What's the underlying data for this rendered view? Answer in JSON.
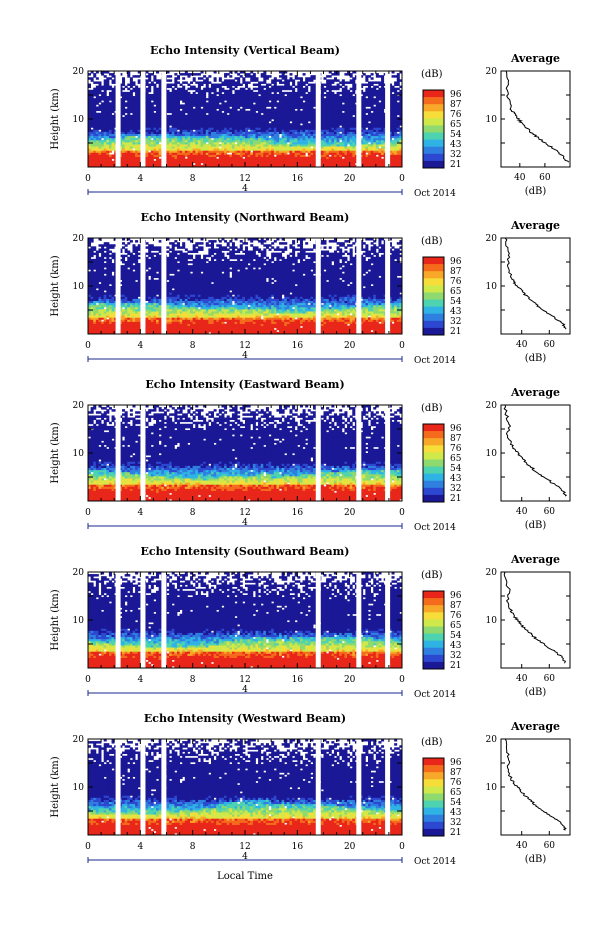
{
  "figure": {
    "xlabel": "Local Time",
    "date_label": "4",
    "month_label": "Oct 2014",
    "colorbar_unit": "(dB)",
    "colorbar_ticks": [
      "96",
      "87",
      "76",
      "65",
      "54",
      "43",
      "32",
      "21"
    ],
    "colorbar_colors": [
      "#e8261a",
      "#f56b1c",
      "#f8a828",
      "#f6dd3a",
      "#cfe84a",
      "#8fda6e",
      "#4dd3b0",
      "#2fb3e4",
      "#2f7fe0",
      "#2c48d0",
      "#1b1896"
    ],
    "average_title": "Average",
    "average_xlabel": "(dB)",
    "average_xticks": [
      "40",
      "60"
    ],
    "height_label": "Height (km)",
    "height_ticks": [
      "10",
      "20"
    ]
  },
  "chart_data": [
    {
      "type": "heatmap",
      "title": "Echo Intensity (Vertical Beam)",
      "xlabel": "Local Time",
      "ylabel": "Height (km)",
      "colorbar_label": "(dB)",
      "x_ticks": [
        "0",
        "4",
        "8",
        "12",
        "16",
        "20",
        "0"
      ],
      "xlim": [
        0,
        24
      ],
      "ylim": [
        0,
        20
      ],
      "data_gaps_hours": [
        2.3,
        4.2,
        5.8,
        17.6,
        20.7,
        22.9
      ],
      "average_profile": {
        "title": "Average",
        "xlabel": "(dB)",
        "xlim": [
          25,
          80
        ],
        "x": [
          78,
          75,
          71,
          66,
          60,
          55,
          50,
          46,
          42,
          39,
          36,
          33,
          31,
          30,
          30,
          29
        ],
        "y": [
          1,
          2,
          3,
          4,
          5,
          6,
          7,
          8,
          9,
          10,
          11,
          12,
          14,
          16,
          18,
          20
        ]
      }
    },
    {
      "type": "heatmap",
      "title": "Echo Intensity (Northward Beam)",
      "xlabel": "Local Time",
      "ylabel": "Height (km)",
      "colorbar_label": "(dB)",
      "x_ticks": [
        "0",
        "4",
        "8",
        "12",
        "16",
        "20",
        "0"
      ],
      "xlim": [
        0,
        24
      ],
      "ylim": [
        0,
        20
      ],
      "data_gaps_hours": [
        2.3,
        4.2,
        5.8,
        17.6,
        20.7,
        22.9
      ],
      "average_profile": {
        "title": "Average",
        "xlabel": "(dB)",
        "xlim": [
          25,
          75
        ],
        "x": [
          72,
          70,
          66,
          61,
          56,
          51,
          47,
          43,
          40,
          37,
          34,
          32,
          30,
          31,
          29,
          28
        ],
        "y": [
          1,
          2,
          3,
          4,
          5,
          6,
          7,
          8,
          9,
          10,
          11,
          12,
          14,
          16,
          18,
          20
        ]
      }
    },
    {
      "type": "heatmap",
      "title": "Echo Intensity (Eastward Beam)",
      "xlabel": "Local Time",
      "ylabel": "Height (km)",
      "colorbar_label": "(dB)",
      "x_ticks": [
        "0",
        "4",
        "8",
        "12",
        "16",
        "20",
        "0"
      ],
      "xlim": [
        0,
        24
      ],
      "ylim": [
        0,
        20
      ],
      "data_gaps_hours": [
        2.3,
        4.2,
        17.6,
        20.7,
        22.9
      ],
      "average_profile": {
        "title": "Average",
        "xlabel": "(dB)",
        "xlim": [
          25,
          75
        ],
        "x": [
          72,
          70,
          66,
          61,
          56,
          51,
          47,
          43,
          40,
          37,
          34,
          32,
          30,
          31,
          29,
          28
        ],
        "y": [
          1,
          2,
          3,
          4,
          5,
          6,
          7,
          8,
          9,
          10,
          11,
          12,
          14,
          16,
          18,
          20
        ]
      }
    },
    {
      "type": "heatmap",
      "title": "Echo Intensity (Southward Beam)",
      "xlabel": "Local Time",
      "ylabel": "Height (km)",
      "colorbar_label": "(dB)",
      "x_ticks": [
        "0",
        "4",
        "8",
        "12",
        "16",
        "20",
        "0"
      ],
      "xlim": [
        0,
        24
      ],
      "ylim": [
        0,
        20
      ],
      "data_gaps_hours": [
        2.3,
        4.2,
        5.8,
        17.6,
        20.7,
        22.9
      ],
      "average_profile": {
        "title": "Average",
        "xlabel": "(dB)",
        "xlim": [
          25,
          75
        ],
        "x": [
          72,
          70,
          66,
          61,
          56,
          51,
          47,
          43,
          40,
          37,
          34,
          32,
          30,
          31,
          29,
          28
        ],
        "y": [
          1,
          2,
          3,
          4,
          5,
          6,
          7,
          8,
          9,
          10,
          11,
          12,
          14,
          16,
          18,
          20
        ]
      }
    },
    {
      "type": "heatmap",
      "title": "Echo Intensity (Westward Beam)",
      "xlabel": "Local Time",
      "ylabel": "Height (km)",
      "colorbar_label": "(dB)",
      "x_ticks": [
        "0",
        "4",
        "8",
        "12",
        "16",
        "20",
        "0"
      ],
      "xlim": [
        0,
        24
      ],
      "ylim": [
        0,
        20
      ],
      "data_gaps_hours": [
        2.3,
        4.2,
        5.8,
        17.6,
        20.7,
        22.9
      ],
      "average_profile": {
        "title": "Average",
        "xlabel": "(dB)",
        "xlim": [
          25,
          75
        ],
        "x": [
          72,
          70,
          66,
          61,
          56,
          51,
          47,
          43,
          40,
          37,
          34,
          32,
          30,
          31,
          29,
          28
        ],
        "y": [
          1,
          2,
          3,
          4,
          5,
          6,
          7,
          8,
          9,
          10,
          11,
          12,
          14,
          16,
          18,
          20
        ]
      }
    }
  ]
}
